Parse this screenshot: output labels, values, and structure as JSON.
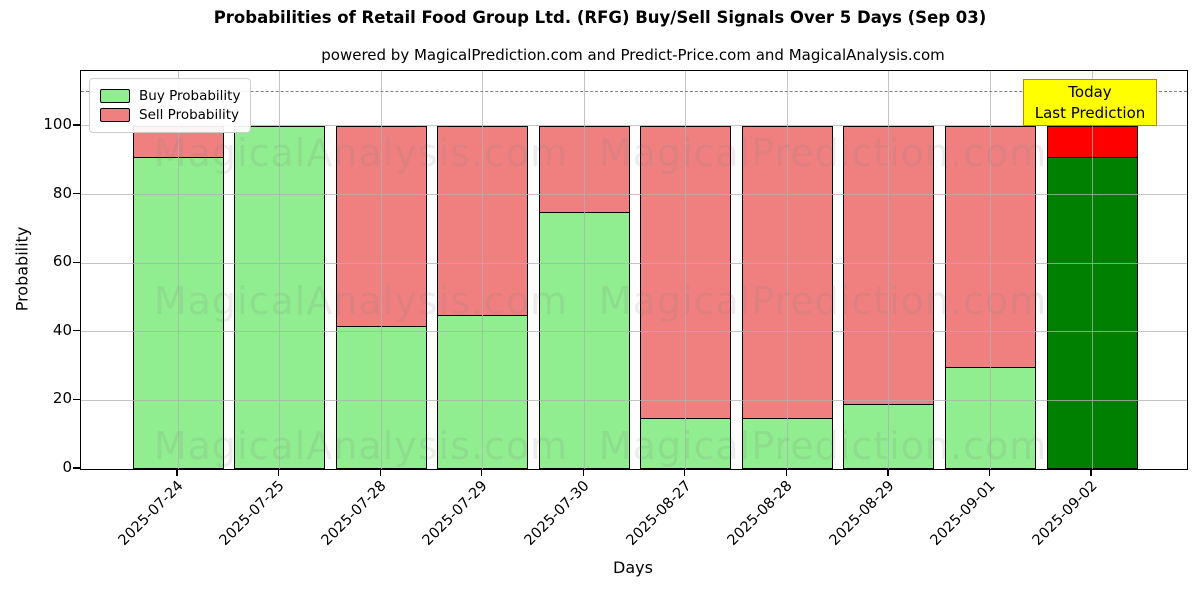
{
  "title": "Probabilities of Retail Food Group Ltd. (RFG) Buy/Sell Signals Over 5 Days (Sep 03)",
  "subtitle": "powered by MagicalPrediction.com and Predict-Price.com and MagicalAnalysis.com",
  "legend": {
    "items": [
      {
        "label": "Buy Probability",
        "color": "#90ee90"
      },
      {
        "label": "Sell Probability",
        "color": "#f08080"
      }
    ]
  },
  "annotation": {
    "lines": [
      "Today",
      "Last Prediction"
    ],
    "bg_color": "#ffff00",
    "border_color": "#b8860b"
  },
  "axes": {
    "xlabel": "Days",
    "ylabel": "Probability",
    "yticks": [
      0,
      20,
      40,
      60,
      80,
      100
    ],
    "ylim": [
      0,
      116
    ],
    "dashed_line_y": 110,
    "grid": true
  },
  "watermarks": {
    "color": "rgba(128,128,128,0.15)",
    "items": [
      {
        "text": "MagicalAnalysis.com",
        "col": 0,
        "row": 0
      },
      {
        "text": "MagicalPrediction.com",
        "col": 1,
        "row": 0
      },
      {
        "text": "MagicalAnalysis.com",
        "col": 0,
        "row": 1
      },
      {
        "text": "MagicalPrediction.com",
        "col": 1,
        "row": 1
      },
      {
        "text": "MagicalAnalysis.com",
        "col": 0,
        "row": 2
      },
      {
        "text": "MagicalPrediction.com",
        "col": 1,
        "row": 2
      }
    ]
  },
  "chart_data": {
    "type": "bar",
    "stacked": true,
    "title": "Probabilities of Retail Food Group Ltd. (RFG) Buy/Sell Signals Over 5 Days (Sep 03)",
    "xlabel": "Days",
    "ylabel": "Probability",
    "ylim": [
      0,
      116
    ],
    "grid": true,
    "legend_position": "upper left",
    "categories": [
      "2025-07-24",
      "2025-07-25",
      "2025-07-28",
      "2025-07-29",
      "2025-07-30",
      "2025-08-27",
      "2025-08-28",
      "2025-08-29",
      "2025-09-01",
      "2025-09-02"
    ],
    "series": [
      {
        "name": "Buy Probability",
        "color": "#90ee90",
        "values": [
          91,
          100,
          42,
          45,
          75,
          15,
          15,
          19,
          30,
          91
        ]
      },
      {
        "name": "Sell Probability",
        "color": "#f08080",
        "values": [
          9,
          0,
          58,
          55,
          25,
          85,
          85,
          81,
          70,
          9
        ]
      }
    ],
    "bar_edge_color": "#000000",
    "highlight_last_bar": {
      "buy_color": "#008000",
      "sell_color": "#ff0000",
      "label": "Today / Last Prediction"
    }
  }
}
